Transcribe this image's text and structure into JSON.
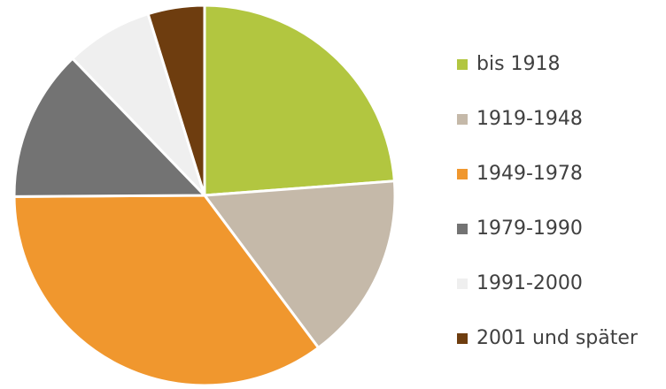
{
  "chart_data": {
    "type": "pie",
    "categories": [
      "bis 1918",
      "1919-1948",
      "1949-1978",
      "1979-1990",
      "1991-2000",
      "2001 und später"
    ],
    "values": [
      23.8,
      16.0,
      35.1,
      12.9,
      7.4,
      4.8
    ],
    "colors": [
      "#b2c640",
      "#c5b9a9",
      "#f0972e",
      "#737373",
      "#efefef",
      "#6e3d0f"
    ],
    "legend": "right"
  }
}
